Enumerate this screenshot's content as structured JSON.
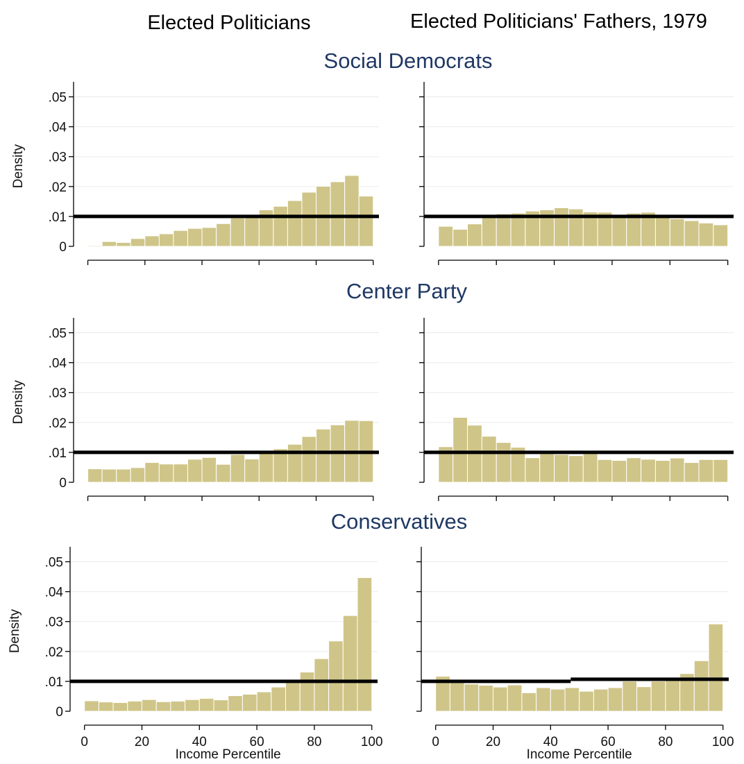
{
  "figure": {
    "column_titles": [
      "Elected Politicians",
      "Elected Politicians' Fathers, 1979"
    ],
    "row_titles": [
      "Social Democrats",
      "Center Party",
      "Conservatives"
    ]
  },
  "colors": {
    "bar_fill": "#cfc588",
    "bar_edge": "#ffffff",
    "reference_line": "#000000",
    "grid": "#e9ece9",
    "row_title": "#1f3864"
  },
  "chart_data": [
    {
      "type": "bar",
      "title": "Social Democrats",
      "subtitle": "Elected Politicians",
      "xlabel": "",
      "ylabel": "Density",
      "bin_width": 5,
      "x": [
        0,
        5,
        10,
        15,
        20,
        25,
        30,
        35,
        40,
        45,
        50,
        55,
        60,
        65,
        70,
        75,
        80,
        85,
        90,
        95
      ],
      "values": [
        0.0003,
        0.0016,
        0.0013,
        0.0026,
        0.0035,
        0.0042,
        0.0053,
        0.006,
        0.0063,
        0.0076,
        0.0095,
        0.0103,
        0.0122,
        0.0134,
        0.0153,
        0.0181,
        0.0201,
        0.0216,
        0.0237,
        0.0168
      ],
      "reference_line": [
        {
          "x": [
            -5,
            102
          ],
          "y": 0.01
        }
      ],
      "xlim": [
        -5,
        102
      ],
      "ylim": [
        0,
        0.055
      ],
      "y_ticks": [
        0,
        0.01,
        0.02,
        0.03,
        0.04,
        0.05
      ],
      "y_tick_labels": [
        "0",
        ".01",
        ".02",
        ".03",
        ".04",
        ".05"
      ],
      "x_ticks": [
        0,
        20,
        40,
        60,
        80,
        100
      ],
      "x_tick_labels": [],
      "grid": true
    },
    {
      "type": "bar",
      "title": "Social Democrats",
      "subtitle": "Elected Politicians' Fathers, 1979",
      "xlabel": "",
      "ylabel": "",
      "bin_width": 5,
      "x": [
        0,
        5,
        10,
        15,
        20,
        25,
        30,
        35,
        40,
        45,
        50,
        55,
        60,
        65,
        70,
        75,
        80,
        85,
        90,
        95
      ],
      "values": [
        0.0067,
        0.0057,
        0.0075,
        0.0101,
        0.0109,
        0.0111,
        0.0118,
        0.0122,
        0.0129,
        0.0125,
        0.0115,
        0.0114,
        0.0104,
        0.0111,
        0.0114,
        0.0098,
        0.0092,
        0.0086,
        0.0078,
        0.0072
      ],
      "reference_line": [
        {
          "x": [
            -5,
            102
          ],
          "y": 0.01
        }
      ],
      "xlim": [
        -5,
        102
      ],
      "ylim": [
        0,
        0.055
      ],
      "y_ticks": [
        0,
        0.01,
        0.02,
        0.03,
        0.04,
        0.05
      ],
      "y_tick_labels": [],
      "x_ticks": [
        0,
        20,
        40,
        60,
        80,
        100
      ],
      "x_tick_labels": [],
      "grid": true
    },
    {
      "type": "bar",
      "title": "Center Party",
      "subtitle": "Elected Politicians",
      "xlabel": "",
      "ylabel": "Density",
      "bin_width": 5,
      "x": [
        0,
        5,
        10,
        15,
        20,
        25,
        30,
        35,
        40,
        45,
        50,
        55,
        60,
        65,
        70,
        75,
        80,
        85,
        90,
        95
      ],
      "values": [
        0.0045,
        0.0044,
        0.0044,
        0.0049,
        0.0066,
        0.0061,
        0.0061,
        0.0077,
        0.0083,
        0.006,
        0.0093,
        0.0078,
        0.0101,
        0.0112,
        0.0127,
        0.0153,
        0.0178,
        0.0192,
        0.0207,
        0.0206
      ],
      "reference_line": [
        {
          "x": [
            -5,
            102
          ],
          "y": 0.01
        }
      ],
      "xlim": [
        -5,
        102
      ],
      "ylim": [
        0,
        0.055
      ],
      "y_ticks": [
        0,
        0.01,
        0.02,
        0.03,
        0.04,
        0.05
      ],
      "y_tick_labels": [
        "0",
        ".01",
        ".02",
        ".03",
        ".04",
        ".05"
      ],
      "x_ticks": [
        0,
        20,
        40,
        60,
        80,
        100
      ],
      "x_tick_labels": [],
      "grid": true
    },
    {
      "type": "bar",
      "title": "Center Party",
      "subtitle": "Elected Politicians' Fathers, 1979",
      "xlabel": "",
      "ylabel": "",
      "bin_width": 5,
      "x": [
        0,
        5,
        10,
        15,
        20,
        25,
        30,
        35,
        40,
        45,
        50,
        55,
        60,
        65,
        70,
        75,
        80,
        85,
        90,
        95
      ],
      "values": [
        0.0119,
        0.0217,
        0.0191,
        0.0154,
        0.0133,
        0.0117,
        0.0082,
        0.0095,
        0.0093,
        0.0089,
        0.0095,
        0.0076,
        0.0073,
        0.0082,
        0.0077,
        0.0073,
        0.0081,
        0.0066,
        0.0076,
        0.0076
      ],
      "reference_line": [
        {
          "x": [
            -5,
            102
          ],
          "y": 0.01
        }
      ],
      "xlim": [
        -5,
        102
      ],
      "ylim": [
        0,
        0.055
      ],
      "y_ticks": [
        0,
        0.01,
        0.02,
        0.03,
        0.04,
        0.05
      ],
      "y_tick_labels": [],
      "x_ticks": [
        0,
        20,
        40,
        60,
        80,
        100
      ],
      "x_tick_labels": [],
      "grid": true
    },
    {
      "type": "bar",
      "title": "Conservatives",
      "subtitle": "Elected Politicians",
      "xlabel": "Income Percentile",
      "ylabel": "Density",
      "bin_width": 5,
      "x": [
        0,
        5,
        10,
        15,
        20,
        25,
        30,
        35,
        40,
        45,
        50,
        55,
        60,
        65,
        70,
        75,
        80,
        85,
        90,
        95
      ],
      "values": [
        0.0035,
        0.0031,
        0.0029,
        0.0034,
        0.0039,
        0.0032,
        0.0034,
        0.0039,
        0.0043,
        0.0038,
        0.0052,
        0.0057,
        0.0065,
        0.0081,
        0.0103,
        0.0131,
        0.0176,
        0.0235,
        0.032,
        0.0447
      ],
      "reference_line": [
        {
          "x": [
            -5,
            102
          ],
          "y": 0.01
        }
      ],
      "xlim": [
        -5,
        102
      ],
      "ylim": [
        0,
        0.055
      ],
      "y_ticks": [
        0,
        0.01,
        0.02,
        0.03,
        0.04,
        0.05
      ],
      "y_tick_labels": [
        "0",
        ".01",
        ".02",
        ".03",
        ".04",
        ".05"
      ],
      "x_ticks": [
        0,
        20,
        40,
        60,
        80,
        100
      ],
      "x_tick_labels": [
        "0",
        "20",
        "40",
        "60",
        "80",
        "100"
      ],
      "grid": true
    },
    {
      "type": "bar",
      "title": "Conservatives",
      "subtitle": "Elected Politicians' Fathers, 1979",
      "xlabel": "Income Percentile",
      "ylabel": "",
      "bin_width": 5,
      "x": [
        0,
        5,
        10,
        15,
        20,
        25,
        30,
        35,
        40,
        45,
        50,
        55,
        60,
        65,
        70,
        75,
        80,
        85,
        90,
        95
      ],
      "values": [
        0.0117,
        0.0099,
        0.0091,
        0.0087,
        0.0081,
        0.0088,
        0.0062,
        0.0079,
        0.0074,
        0.0079,
        0.0067,
        0.0074,
        0.0079,
        0.0101,
        0.0082,
        0.0101,
        0.0111,
        0.0126,
        0.0169,
        0.0292
      ],
      "reference_line": [
        {
          "x": [
            -5,
            47
          ],
          "y": 0.01
        },
        {
          "x": [
            47,
            102
          ],
          "y": 0.0107
        }
      ],
      "xlim": [
        -5,
        102
      ],
      "ylim": [
        0,
        0.055
      ],
      "y_ticks": [
        0,
        0.01,
        0.02,
        0.03,
        0.04,
        0.05
      ],
      "y_tick_labels": [],
      "x_ticks": [
        0,
        20,
        40,
        60,
        80,
        100
      ],
      "x_tick_labels": [
        "0",
        "20",
        "40",
        "60",
        "80",
        "100"
      ],
      "grid": true
    }
  ]
}
